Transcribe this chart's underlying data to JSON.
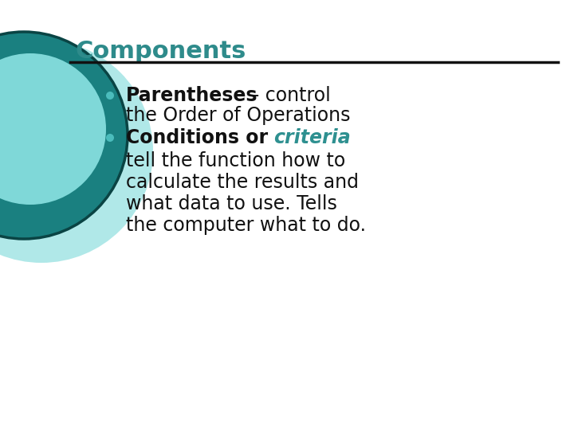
{
  "title": "Components",
  "title_color": "#2e8b8b",
  "title_fontsize": 22,
  "background_color": "#ffffff",
  "separator_color": "#111111",
  "bullet_color": "#4bbcbc",
  "bullet1_bold": "Parentheses",
  "bullet1_dash": " – control",
  "bullet1_line2": "the Order of Operations",
  "bullet2_bold": "Conditions or ",
  "bullet2_colored": "criteria",
  "bullet2_colored_color": "#2e9090",
  "body_lines": [
    "tell the function how to",
    "calculate the results and",
    "what data to use. Tells",
    "the computer what to do."
  ],
  "text_color": "#111111",
  "text_fontsize": 17,
  "circle_outer_color": "#1a8080",
  "circle_outer_edge": "#0a4444",
  "circle_inner_color": "#7fd8d8",
  "circle_shadow_color": "#b0e8e8"
}
